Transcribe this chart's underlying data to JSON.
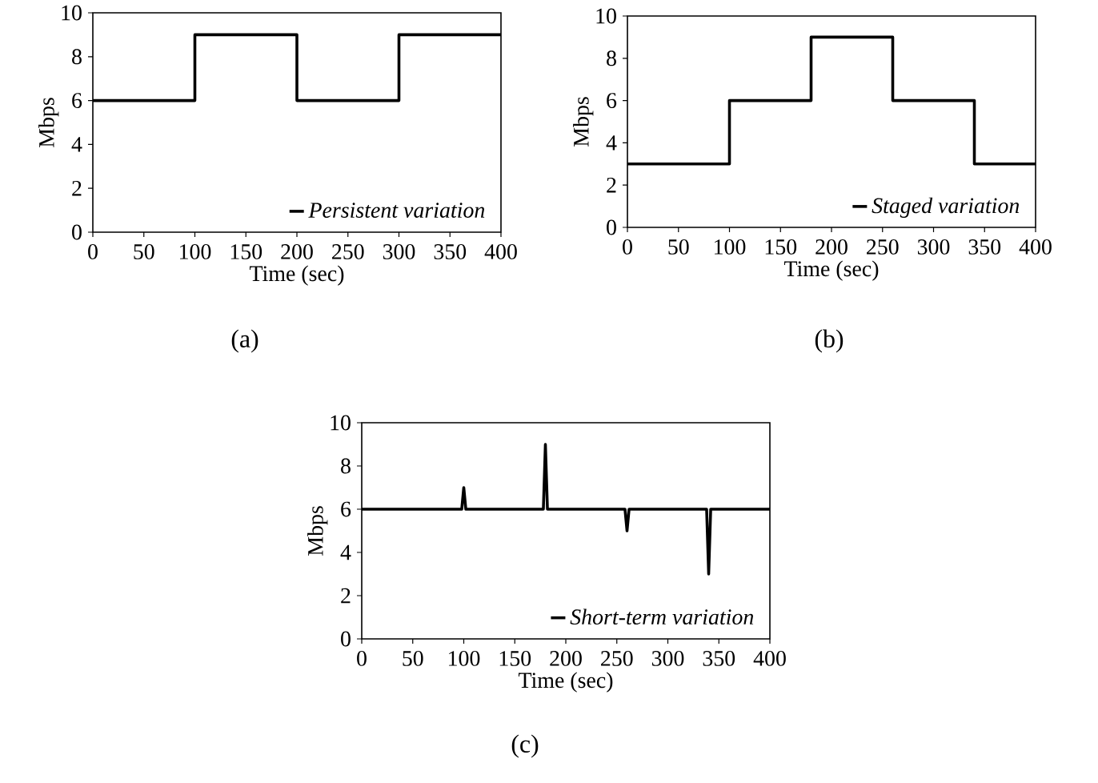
{
  "chart_data": [
    {
      "type": "line",
      "xlabel": "Time (sec)",
      "ylabel": "Mbps",
      "xlim": [
        0,
        400
      ],
      "ylim": [
        0,
        10
      ],
      "xticks": [
        0,
        50,
        100,
        150,
        200,
        250,
        300,
        350,
        400
      ],
      "yticks": [
        0,
        2,
        4,
        6,
        8,
        10
      ],
      "legend": "bottom right",
      "annotations": [
        "(a)"
      ],
      "series": [
        {
          "name": "Persistent variation",
          "color": "#000000",
          "x": [
            0,
            100,
            100,
            200,
            200,
            300,
            300,
            400
          ],
          "values": [
            6,
            6,
            9,
            9,
            6,
            6,
            9,
            9
          ]
        }
      ]
    },
    {
      "type": "line",
      "xlabel": "Time (sec)",
      "ylabel": "Mbps",
      "xlim": [
        0,
        400
      ],
      "ylim": [
        0,
        10
      ],
      "xticks": [
        0,
        50,
        100,
        150,
        200,
        250,
        300,
        350,
        400
      ],
      "yticks": [
        0,
        2,
        4,
        6,
        8,
        10
      ],
      "legend": "bottom right",
      "annotations": [
        "(b)"
      ],
      "series": [
        {
          "name": "Staged variation",
          "color": "#000000",
          "x": [
            0,
            100,
            100,
            180,
            180,
            260,
            260,
            340,
            340,
            400
          ],
          "values": [
            3,
            3,
            6,
            6,
            9,
            9,
            6,
            6,
            3,
            3
          ]
        }
      ]
    },
    {
      "type": "line",
      "xlabel": "Time (sec)",
      "ylabel": "Mbps",
      "xlim": [
        0,
        400
      ],
      "ylim": [
        0,
        10
      ],
      "xticks": [
        0,
        50,
        100,
        150,
        200,
        250,
        300,
        350,
        400
      ],
      "yticks": [
        0,
        2,
        4,
        6,
        8,
        10
      ],
      "legend": "bottom right",
      "annotations": [
        "(c)"
      ],
      "series": [
        {
          "name": "Short-term variation",
          "color": "#000000",
          "x": [
            0,
            98,
            100,
            102,
            178,
            180,
            182,
            258,
            260,
            262,
            338,
            340,
            342,
            400
          ],
          "values": [
            6,
            6,
            7,
            6,
            6,
            9,
            6,
            6,
            5,
            6,
            6,
            3,
            6,
            6
          ]
        }
      ]
    }
  ]
}
